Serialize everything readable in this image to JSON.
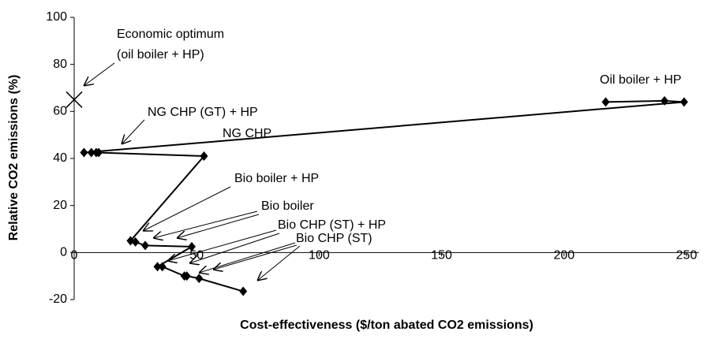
{
  "chart_data": {
    "type": "line",
    "xlabel": "Cost-effectiveness ($/ton abated CO2 emissions)",
    "ylabel": "Relative CO2 emissions (%)",
    "xlim": [
      0,
      255
    ],
    "ylim": [
      -20,
      100
    ],
    "xticks": [
      0,
      50,
      100,
      150,
      200,
      250
    ],
    "yticks": [
      -20,
      0,
      20,
      40,
      60,
      80,
      100
    ],
    "series": [
      {
        "color": "#000000",
        "x": [
          217,
          241,
          249,
          4,
          7,
          9,
          10,
          53,
          23,
          25,
          29,
          48,
          34,
          36,
          45,
          46,
          51,
          69
        ],
        "values": [
          64,
          64.5,
          64,
          42.5,
          42.5,
          42.5,
          42.5,
          41,
          5,
          4.5,
          3,
          2.5,
          -6,
          -6,
          -10,
          -10,
          -11,
          -16.5
        ]
      }
    ],
    "optimum": {
      "x": 0,
      "y": 65
    },
    "annotations": [
      "Economic optimum",
      "(oil boiler + HP)",
      "Oil boiler + HP",
      "NG CHP (GT) + HP",
      "NG CHP",
      "Bio boiler + HP",
      "Bio boiler",
      "Bio CHP (ST) + HP",
      "Bio CHP (ST)"
    ]
  }
}
